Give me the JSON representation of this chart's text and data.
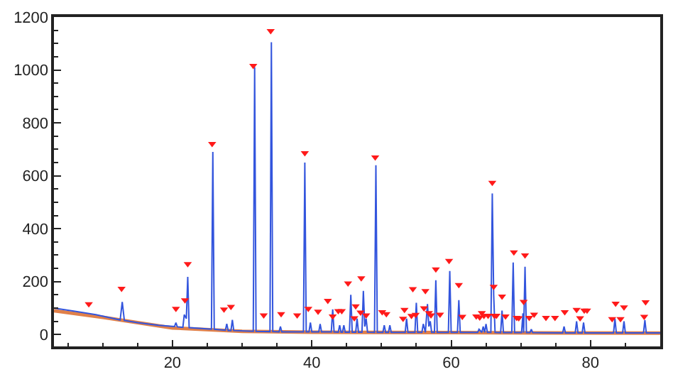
{
  "chart_data": {
    "type": "line",
    "xlim": [
      3,
      90
    ],
    "ylim": [
      -45,
      1200
    ],
    "xticks": [
      {
        "value": 5,
        "label": null
      },
      {
        "value": 10,
        "label": null
      },
      {
        "value": 15,
        "label": null
      },
      20,
      {
        "value": 25,
        "label": null
      },
      {
        "value": 30,
        "label": null
      },
      {
        "value": 35,
        "label": null
      },
      40,
      {
        "value": 45,
        "label": null
      },
      {
        "value": 50,
        "label": null
      },
      {
        "value": 55,
        "label": null
      },
      60,
      {
        "value": 65,
        "label": null
      },
      {
        "value": 70,
        "label": null
      },
      {
        "value": 75,
        "label": null
      },
      80,
      {
        "value": 85,
        "label": null
      }
    ],
    "yticks": [
      0,
      {
        "value": 50,
        "label": null
      },
      {
        "value": 100,
        "label": null
      },
      {
        "value": 150,
        "label": null
      },
      200,
      {
        "value": 250,
        "label": null
      },
      {
        "value": 300,
        "label": null
      },
      {
        "value": 350,
        "label": null
      },
      400,
      {
        "value": 450,
        "label": null
      },
      {
        "value": 500,
        "label": null
      },
      {
        "value": 550,
        "label": null
      },
      600,
      {
        "value": 650,
        "label": null
      },
      {
        "value": 700,
        "label": null
      },
      {
        "value": 750,
        "label": null
      },
      800,
      {
        "value": 850,
        "label": null
      },
      {
        "value": 900,
        "label": null
      },
      {
        "value": 950,
        "label": null
      },
      1000,
      {
        "value": 1050,
        "label": null
      },
      {
        "value": 1100,
        "label": null
      },
      {
        "value": 1150,
        "label": null
      },
      1200
    ],
    "series": [
      {
        "color": "#e0804a",
        "marker": "none",
        "x": [
          3,
          10,
          20,
          30,
          40,
          60,
          90
        ],
        "values": [
          90,
          65,
          25,
          12,
          9,
          7,
          5
        ]
      },
      {
        "color": "#3355dd",
        "marker": "none",
        "x": [
          3,
          6,
          9,
          12.5,
          12.8,
          13.1,
          15,
          18,
          20.3,
          20.5,
          20.7,
          21.5,
          21.7,
          22.0,
          22.2,
          22.4,
          25.6,
          25.8,
          26.0,
          27.6,
          27.8,
          28.0,
          28.4,
          28.6,
          28.8,
          31.6,
          31.8,
          32.0,
          34.0,
          34.2,
          34.4,
          35.3,
          35.5,
          35.7,
          38.8,
          39.0,
          39.2,
          39.6,
          39.8,
          40.0,
          41.0,
          41.2,
          41.4,
          42.8,
          43.0,
          43.2,
          43.8,
          44.0,
          44.2,
          44.4,
          44.6,
          44.8,
          45.4,
          45.6,
          45.8,
          46.3,
          46.5,
          46.7,
          47.2,
          47.4,
          47.6,
          47.8,
          48.0,
          49.0,
          49.2,
          49.4,
          50.2,
          50.4,
          50.6,
          51.0,
          51.2,
          51.4,
          53.4,
          53.6,
          53.8,
          54.8,
          55.0,
          55.2,
          55.8,
          56.0,
          56.3,
          56.6,
          56.8,
          57.0,
          57.2,
          57.6,
          57.8,
          58.0,
          59.6,
          59.8,
          60.0,
          60.9,
          61.1,
          61.3,
          63.8,
          64.0,
          64.4,
          64.6,
          64.8,
          65.0,
          65.2,
          65.7,
          65.9,
          66.1,
          66.3,
          67.1,
          67.3,
          67.5,
          68.7,
          68.9,
          69.1,
          70.1,
          70.3,
          70.4,
          70.6,
          70.8,
          71.3,
          71.5,
          71.7,
          76.0,
          76.2,
          76.4,
          77.8,
          78.0,
          78.2,
          78.8,
          79.0,
          79.2,
          83.3,
          83.5,
          83.7,
          84.6,
          84.8,
          85.0,
          87.6,
          87.8,
          88.0,
          90
        ],
        "values": [
          100,
          88,
          75,
          55,
          123,
          53,
          45,
          35,
          30,
          45,
          29,
          27,
          75,
          60,
          218,
          26,
          20,
          690,
          20,
          16,
          40,
          15,
          15,
          55,
          15,
          12,
          1010,
          12,
          11,
          1105,
          11,
          10,
          30,
          10,
          10,
          650,
          10,
          10,
          45,
          10,
          10,
          40,
          10,
          10,
          95,
          10,
          9,
          35,
          9,
          9,
          35,
          9,
          9,
          150,
          9,
          9,
          60,
          9,
          9,
          165,
          30,
          60,
          9,
          8,
          640,
          8,
          8,
          35,
          8,
          8,
          35,
          8,
          8,
          60,
          8,
          8,
          120,
          8,
          8,
          40,
          8,
          115,
          30,
          50,
          8,
          8,
          205,
          8,
          8,
          240,
          8,
          8,
          130,
          8,
          8,
          20,
          8,
          30,
          8,
          40,
          8,
          8,
          533,
          150,
          8,
          7,
          90,
          7,
          7,
          272,
          7,
          7,
          80,
          7,
          256,
          7,
          7,
          20,
          7,
          6,
          30,
          6,
          6,
          50,
          6,
          6,
          45,
          6,
          6,
          60,
          6,
          6,
          50,
          6,
          6,
          55,
          6,
          6
        ]
      },
      {
        "type": "scatter",
        "color": "#ff1a1a",
        "marker": "triangle",
        "x": [
          8.0,
          12.7,
          20.5,
          21.8,
          22.2,
          25.7,
          27.4,
          28.4,
          31.6,
          33.1,
          34.1,
          35.6,
          37.9,
          39.0,
          39.5,
          40.9,
          42.3,
          43.0,
          43.8,
          44.3,
          45.2,
          46.1,
          46.3,
          47.0,
          47.1,
          47.8,
          49.1,
          50.1,
          50.7,
          53.1,
          53.3,
          54.3,
          54.5,
          54.9,
          56.1,
          56.3,
          56.8,
          57.1,
          57.8,
          58.4,
          59.7,
          61.1,
          61.6,
          63.6,
          64.1,
          64.4,
          64.7,
          65.3,
          65.9,
          66.1,
          66.2,
          66.5,
          67.3,
          67.8,
          69.0,
          69.4,
          69.7,
          70.4,
          70.6,
          71.2,
          71.9,
          73.6,
          74.9,
          76.3,
          78.0,
          78.5,
          79.1,
          79.5,
          83.1,
          83.6,
          84.3,
          84.8,
          87.7,
          87.9
        ],
        "values": [
          115,
          174,
          98,
          130,
          267,
          721,
          95,
          105,
          1016,
          73,
          1148,
          78,
          73,
          686,
          98,
          87,
          128,
          69,
          89,
          89,
          194,
          62,
          107,
          84,
          213,
          73,
          670,
          85,
          78,
          60,
          94,
          71,
          172,
          75,
          100,
          165,
          82,
          73,
          247,
          76,
          279,
          188,
          68,
          69,
          65,
          82,
          71,
          72,
          574,
          181,
          72,
          72,
          144,
          69,
          311,
          64,
          62,
          124,
          300,
          64,
          76,
          64,
          64,
          85,
          94,
          62,
          91,
          91,
          59,
          117,
          59,
          103,
          68,
          123
        ]
      }
    ]
  }
}
